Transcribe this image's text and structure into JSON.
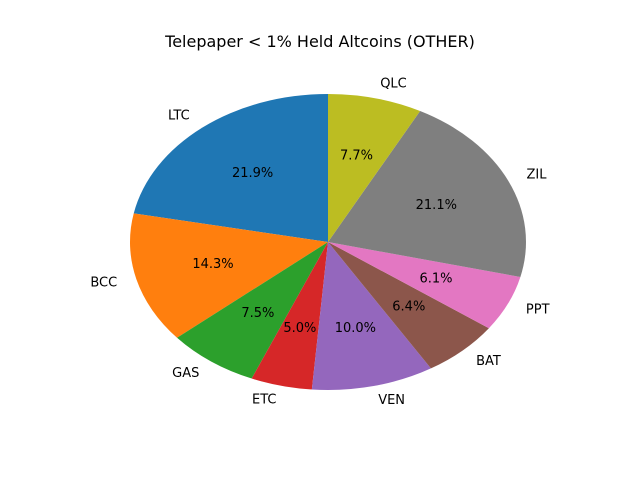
{
  "chart_data": {
    "type": "pie",
    "title": "Telepaper < 1% Held Altcoins (OTHER)",
    "slices": [
      {
        "label": "LTC",
        "value": 21.9,
        "pct_label": "21.9%",
        "color": "#1f77b4"
      },
      {
        "label": "BCC",
        "value": 14.3,
        "pct_label": "14.3%",
        "color": "#ff7f0e"
      },
      {
        "label": "GAS",
        "value": 7.5,
        "pct_label": "7.5%",
        "color": "#2ca02c"
      },
      {
        "label": "ETC",
        "value": 5.0,
        "pct_label": "5.0%",
        "color": "#d62728"
      },
      {
        "label": "VEN",
        "value": 10.0,
        "pct_label": "10.0%",
        "color": "#9467bd"
      },
      {
        "label": "BAT",
        "value": 6.4,
        "pct_label": "6.4%",
        "color": "#8c564b"
      },
      {
        "label": "PPT",
        "value": 6.1,
        "pct_label": "6.1%",
        "color": "#e377c2"
      },
      {
        "label": "ZIL",
        "value": 21.1,
        "pct_label": "21.1%",
        "color": "#7f7f7f"
      },
      {
        "label": "QLC",
        "value": 7.7,
        "pct_label": "7.7%",
        "color": "#bcbd22"
      }
    ],
    "start_angle_deg": 90,
    "direction": "counterclockwise",
    "legend": "none"
  }
}
